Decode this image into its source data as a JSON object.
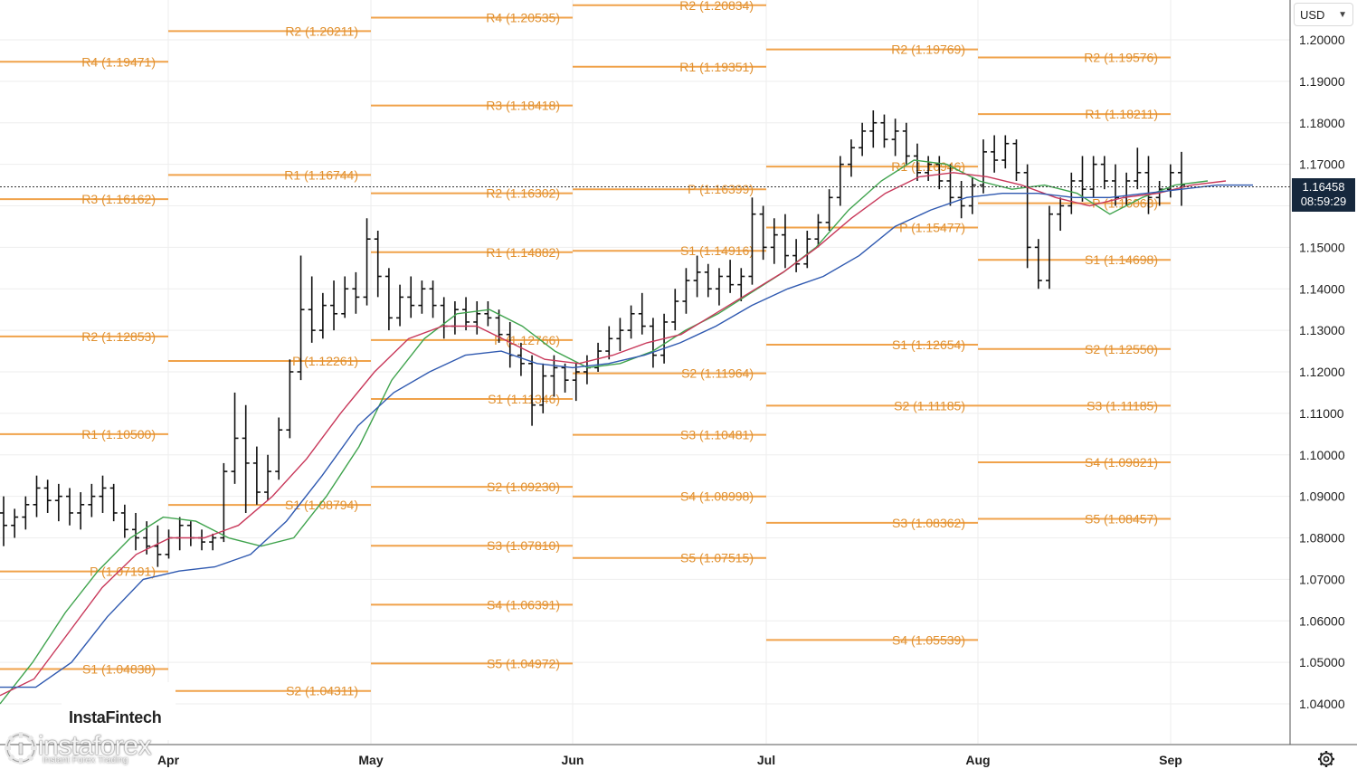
{
  "header": {
    "currency": "USD"
  },
  "price_badge": {
    "price": "1.16458",
    "countdown": "08:59:29"
  },
  "watermark": {
    "brand": "instaforex",
    "tagline": "Instant Forex Trading",
    "partner": "InstaFintech"
  },
  "settings_icon": "gear-icon",
  "colors": {
    "pivot": "#f0a24a",
    "pivot_text": "#e0902f",
    "bars": "#111111",
    "ma_fast": "#3fa34d",
    "ma_mid": "#c8385a",
    "ma_slow": "#2f59b0",
    "price_line": "#333333",
    "badge": "#16283d"
  },
  "chart_data": {
    "type": "ohlc",
    "title": "",
    "xlabel": "",
    "ylabel": "",
    "y_ticks": [
      "1.20000",
      "1.19000",
      "1.18000",
      "1.17000",
      "1.16000",
      "1.15000",
      "1.14000",
      "1.13000",
      "1.12000",
      "1.11000",
      "1.10000",
      "1.09000",
      "1.08000",
      "1.07000",
      "1.06000",
      "1.05000",
      "1.04000"
    ],
    "ylim": [
      1.03,
      1.2095
    ],
    "x_months": [
      "Apr",
      "May",
      "Jun",
      "Jul",
      "Aug",
      "Sep"
    ],
    "current_price": 1.16458,
    "grid": true,
    "pivot_segments": [
      {
        "start": "Mar",
        "levels": [
          {
            "label": "R4 (1.19471)",
            "value": 1.19471
          },
          {
            "label": "R3 (1.16162)",
            "value": 1.16162
          },
          {
            "label": "R2 (1.12853)",
            "value": 1.12853
          },
          {
            "label": "R1 (1.10500)",
            "value": 1.105
          },
          {
            "label": "P (1.07191)",
            "value": 1.07191
          },
          {
            "label": "S1 (1.04838)",
            "value": 1.04838
          }
        ]
      },
      {
        "start": "Apr",
        "levels": [
          {
            "label": "R2 (1.20211)",
            "value": 1.20211
          },
          {
            "label": "R1 (1.16744)",
            "value": 1.16744
          },
          {
            "label": "P (1.12261)",
            "value": 1.12261
          },
          {
            "label": "S1 (1.08794)",
            "value": 1.08794
          },
          {
            "label": "S2 (1.04311)",
            "value": 1.04311
          }
        ]
      },
      {
        "start": "May",
        "levels": [
          {
            "label": "R4 (1.20535)",
            "value": 1.20535
          },
          {
            "label": "R3 (1.18418)",
            "value": 1.18418
          },
          {
            "label": "R2 (1.16302)",
            "value": 1.16302
          },
          {
            "label": "R1 (1.14882)",
            "value": 1.14882
          },
          {
            "label": "P (1.12766)",
            "value": 1.12766
          },
          {
            "label": "S1 (1.11346)",
            "value": 1.11346
          },
          {
            "label": "S2 (1.09230)",
            "value": 1.0923
          },
          {
            "label": "S3 (1.07810)",
            "value": 1.0781
          },
          {
            "label": "S4 (1.06391)",
            "value": 1.06391
          },
          {
            "label": "S5 (1.04972)",
            "value": 1.04972
          }
        ]
      },
      {
        "start": "Jun",
        "levels": [
          {
            "label": "R2 (1.20834)",
            "value": 1.20834
          },
          {
            "label": "R1 (1.19351)",
            "value": 1.19351
          },
          {
            "label": "P (1.16399)",
            "value": 1.16399
          },
          {
            "label": "S1 (1.14916)",
            "value": 1.14916
          },
          {
            "label": "S2 (1.11964)",
            "value": 1.11964
          },
          {
            "label": "S3 (1.10481)",
            "value": 1.10481
          },
          {
            "label": "S4 (1.08998)",
            "value": 1.08998
          },
          {
            "label": "S5 (1.07515)",
            "value": 1.07515
          }
        ]
      },
      {
        "start": "Jul",
        "levels": [
          {
            "label": "R2 (1.19769)",
            "value": 1.19769
          },
          {
            "label": "R1 (1.16946)",
            "value": 1.16946
          },
          {
            "label": "P (1.15477)",
            "value": 1.15477
          },
          {
            "label": "S1 (1.12654)",
            "value": 1.12654
          },
          {
            "label": "S2 (1.11185)",
            "value": 1.11185
          },
          {
            "label": "S3 (1.08362)",
            "value": 1.08362
          },
          {
            "label": "S4 (1.05539)",
            "value": 1.05539
          }
        ]
      },
      {
        "start": "Aug",
        "levels": [
          {
            "label": "R2 (1.19576)",
            "value": 1.19576
          },
          {
            "label": "R1 (1.18211)",
            "value": 1.18211
          },
          {
            "label": "P (1.16063)",
            "value": 1.16063
          },
          {
            "label": "S1 (1.14698)",
            "value": 1.14698
          },
          {
            "label": "S2 (1.12550)",
            "value": 1.1255
          },
          {
            "label": "S3 (1.11185)",
            "value": 1.11185
          },
          {
            "label": "S4 (1.09821)",
            "value": 1.09821
          },
          {
            "label": "S5 (1.08457)",
            "value": 1.08457
          }
        ]
      }
    ],
    "ohlc": [
      [
        1.086,
        1.09,
        1.078,
        1.083
      ],
      [
        1.083,
        1.087,
        1.08,
        1.085
      ],
      [
        1.085,
        1.09,
        1.082,
        1.088
      ],
      [
        1.088,
        1.095,
        1.085,
        1.092
      ],
      [
        1.092,
        1.094,
        1.086,
        1.089
      ],
      [
        1.089,
        1.093,
        1.084,
        1.09
      ],
      [
        1.09,
        1.092,
        1.083,
        1.086
      ],
      [
        1.086,
        1.091,
        1.082,
        1.088
      ],
      [
        1.088,
        1.093,
        1.085,
        1.09
      ],
      [
        1.09,
        1.095,
        1.086,
        1.092
      ],
      [
        1.092,
        1.093,
        1.084,
        1.086
      ],
      [
        1.086,
        1.088,
        1.08,
        1.082
      ],
      [
        1.082,
        1.086,
        1.077,
        1.08
      ],
      [
        1.08,
        1.084,
        1.076,
        1.078
      ],
      [
        1.078,
        1.083,
        1.073,
        1.076
      ],
      [
        1.076,
        1.082,
        1.075,
        1.08
      ],
      [
        1.08,
        1.085,
        1.077,
        1.083
      ],
      [
        1.083,
        1.084,
        1.078,
        1.08
      ],
      [
        1.08,
        1.082,
        1.077,
        1.079
      ],
      [
        1.079,
        1.081,
        1.077,
        1.08
      ],
      [
        1.08,
        1.098,
        1.079,
        1.096
      ],
      [
        1.096,
        1.115,
        1.093,
        1.104
      ],
      [
        1.104,
        1.112,
        1.086,
        1.098
      ],
      [
        1.098,
        1.102,
        1.088,
        1.091
      ],
      [
        1.091,
        1.1,
        1.089,
        1.096
      ],
      [
        1.096,
        1.109,
        1.094,
        1.106
      ],
      [
        1.106,
        1.123,
        1.104,
        1.12
      ],
      [
        1.12,
        1.148,
        1.118,
        1.135
      ],
      [
        1.135,
        1.143,
        1.127,
        1.13
      ],
      [
        1.13,
        1.139,
        1.128,
        1.136
      ],
      [
        1.136,
        1.142,
        1.13,
        1.134
      ],
      [
        1.134,
        1.143,
        1.133,
        1.14
      ],
      [
        1.14,
        1.144,
        1.134,
        1.138
      ],
      [
        1.138,
        1.157,
        1.136,
        1.152
      ],
      [
        1.152,
        1.154,
        1.138,
        1.143
      ],
      [
        1.143,
        1.145,
        1.13,
        1.133
      ],
      [
        1.133,
        1.141,
        1.131,
        1.138
      ],
      [
        1.138,
        1.143,
        1.133,
        1.136
      ],
      [
        1.136,
        1.142,
        1.134,
        1.14
      ],
      [
        1.14,
        1.142,
        1.133,
        1.136
      ],
      [
        1.136,
        1.138,
        1.128,
        1.131
      ],
      [
        1.131,
        1.137,
        1.129,
        1.135
      ],
      [
        1.135,
        1.138,
        1.13,
        1.132
      ],
      [
        1.132,
        1.137,
        1.129,
        1.134
      ],
      [
        1.134,
        1.137,
        1.131,
        1.133
      ],
      [
        1.133,
        1.135,
        1.127,
        1.129
      ],
      [
        1.129,
        1.132,
        1.121,
        1.124
      ],
      [
        1.124,
        1.127,
        1.119,
        1.122
      ],
      [
        1.122,
        1.124,
        1.107,
        1.112
      ],
      [
        1.112,
        1.122,
        1.11,
        1.119
      ],
      [
        1.119,
        1.124,
        1.114,
        1.121
      ],
      [
        1.121,
        1.122,
        1.115,
        1.118
      ],
      [
        1.118,
        1.122,
        1.113,
        1.12
      ],
      [
        1.12,
        1.124,
        1.117,
        1.121
      ],
      [
        1.121,
        1.127,
        1.12,
        1.125
      ],
      [
        1.125,
        1.131,
        1.123,
        1.128
      ],
      [
        1.128,
        1.133,
        1.125,
        1.13
      ],
      [
        1.13,
        1.136,
        1.128,
        1.134
      ],
      [
        1.134,
        1.139,
        1.129,
        1.131
      ],
      [
        1.131,
        1.133,
        1.121,
        1.124
      ],
      [
        1.124,
        1.134,
        1.122,
        1.132
      ],
      [
        1.132,
        1.14,
        1.13,
        1.137
      ],
      [
        1.137,
        1.145,
        1.134,
        1.142
      ],
      [
        1.142,
        1.148,
        1.138,
        1.144
      ],
      [
        1.144,
        1.146,
        1.138,
        1.14
      ],
      [
        1.14,
        1.145,
        1.136,
        1.143
      ],
      [
        1.143,
        1.147,
        1.139,
        1.141
      ],
      [
        1.141,
        1.145,
        1.137,
        1.143
      ],
      [
        1.143,
        1.162,
        1.141,
        1.158
      ],
      [
        1.158,
        1.16,
        1.147,
        1.15
      ],
      [
        1.15,
        1.157,
        1.146,
        1.153
      ],
      [
        1.153,
        1.158,
        1.145,
        1.148
      ],
      [
        1.148,
        1.152,
        1.144,
        1.146
      ],
      [
        1.146,
        1.154,
        1.145,
        1.152
      ],
      [
        1.152,
        1.158,
        1.15,
        1.156
      ],
      [
        1.156,
        1.164,
        1.154,
        1.162
      ],
      [
        1.162,
        1.172,
        1.16,
        1.17
      ],
      [
        1.17,
        1.176,
        1.167,
        1.174
      ],
      [
        1.174,
        1.18,
        1.172,
        1.178
      ],
      [
        1.178,
        1.183,
        1.174,
        1.18
      ],
      [
        1.18,
        1.182,
        1.174,
        1.176
      ],
      [
        1.176,
        1.181,
        1.172,
        1.178
      ],
      [
        1.178,
        1.18,
        1.17,
        1.172
      ],
      [
        1.172,
        1.175,
        1.166,
        1.168
      ],
      [
        1.168,
        1.172,
        1.166,
        1.17
      ],
      [
        1.17,
        1.172,
        1.164,
        1.166
      ],
      [
        1.166,
        1.17,
        1.16,
        1.162
      ],
      [
        1.162,
        1.166,
        1.157,
        1.16
      ],
      [
        1.16,
        1.167,
        1.158,
        1.165
      ],
      [
        1.165,
        1.176,
        1.163,
        1.173
      ],
      [
        1.173,
        1.177,
        1.168,
        1.171
      ],
      [
        1.171,
        1.177,
        1.169,
        1.175
      ],
      [
        1.175,
        1.176,
        1.166,
        1.168
      ],
      [
        1.168,
        1.17,
        1.145,
        1.15
      ],
      [
        1.15,
        1.152,
        1.14,
        1.142
      ],
      [
        1.142,
        1.16,
        1.14,
        1.158
      ],
      [
        1.158,
        1.162,
        1.154,
        1.16
      ],
      [
        1.16,
        1.168,
        1.158,
        1.166
      ],
      [
        1.166,
        1.172,
        1.161,
        1.164
      ],
      [
        1.164,
        1.172,
        1.162,
        1.17
      ],
      [
        1.17,
        1.172,
        1.164,
        1.166
      ],
      [
        1.166,
        1.17,
        1.16,
        1.162
      ],
      [
        1.162,
        1.168,
        1.16,
        1.166
      ],
      [
        1.166,
        1.174,
        1.164,
        1.168
      ],
      [
        1.168,
        1.172,
        1.158,
        1.162
      ],
      [
        1.162,
        1.166,
        1.16,
        1.164
      ],
      [
        1.164,
        1.17,
        1.162,
        1.168
      ],
      [
        1.168,
        1.173,
        1.16,
        1.165
      ]
    ],
    "ma_fast": [
      1.04,
      1.05,
      1.062,
      1.072,
      1.08,
      1.085,
      1.084,
      1.08,
      1.078,
      1.08,
      1.09,
      1.102,
      1.118,
      1.128,
      1.134,
      1.135,
      1.131,
      1.125,
      1.121,
      1.122,
      1.125,
      1.13,
      1.134,
      1.139,
      1.144,
      1.15,
      1.159,
      1.166,
      1.171,
      1.17,
      1.166,
      1.164,
      1.165,
      1.163,
      1.158,
      1.162,
      1.165,
      1.166
    ],
    "ma_mid": [
      1.042,
      1.046,
      1.057,
      1.068,
      1.076,
      1.08,
      1.08,
      1.083,
      1.09,
      1.099,
      1.11,
      1.12,
      1.128,
      1.131,
      1.131,
      1.127,
      1.123,
      1.122,
      1.124,
      1.127,
      1.129,
      1.134,
      1.139,
      1.144,
      1.15,
      1.157,
      1.163,
      1.167,
      1.168,
      1.167,
      1.165,
      1.162,
      1.16,
      1.162,
      1.163,
      1.165,
      1.166
    ],
    "ma_slow": [
      1.044,
      1.044,
      1.05,
      1.061,
      1.07,
      1.072,
      1.073,
      1.076,
      1.084,
      1.095,
      1.107,
      1.115,
      1.12,
      1.124,
      1.125,
      1.122,
      1.121,
      1.122,
      1.124,
      1.127,
      1.131,
      1.136,
      1.14,
      1.143,
      1.148,
      1.155,
      1.159,
      1.162,
      1.163,
      1.163,
      1.162,
      1.162,
      1.163,
      1.164,
      1.165,
      1.165
    ]
  }
}
